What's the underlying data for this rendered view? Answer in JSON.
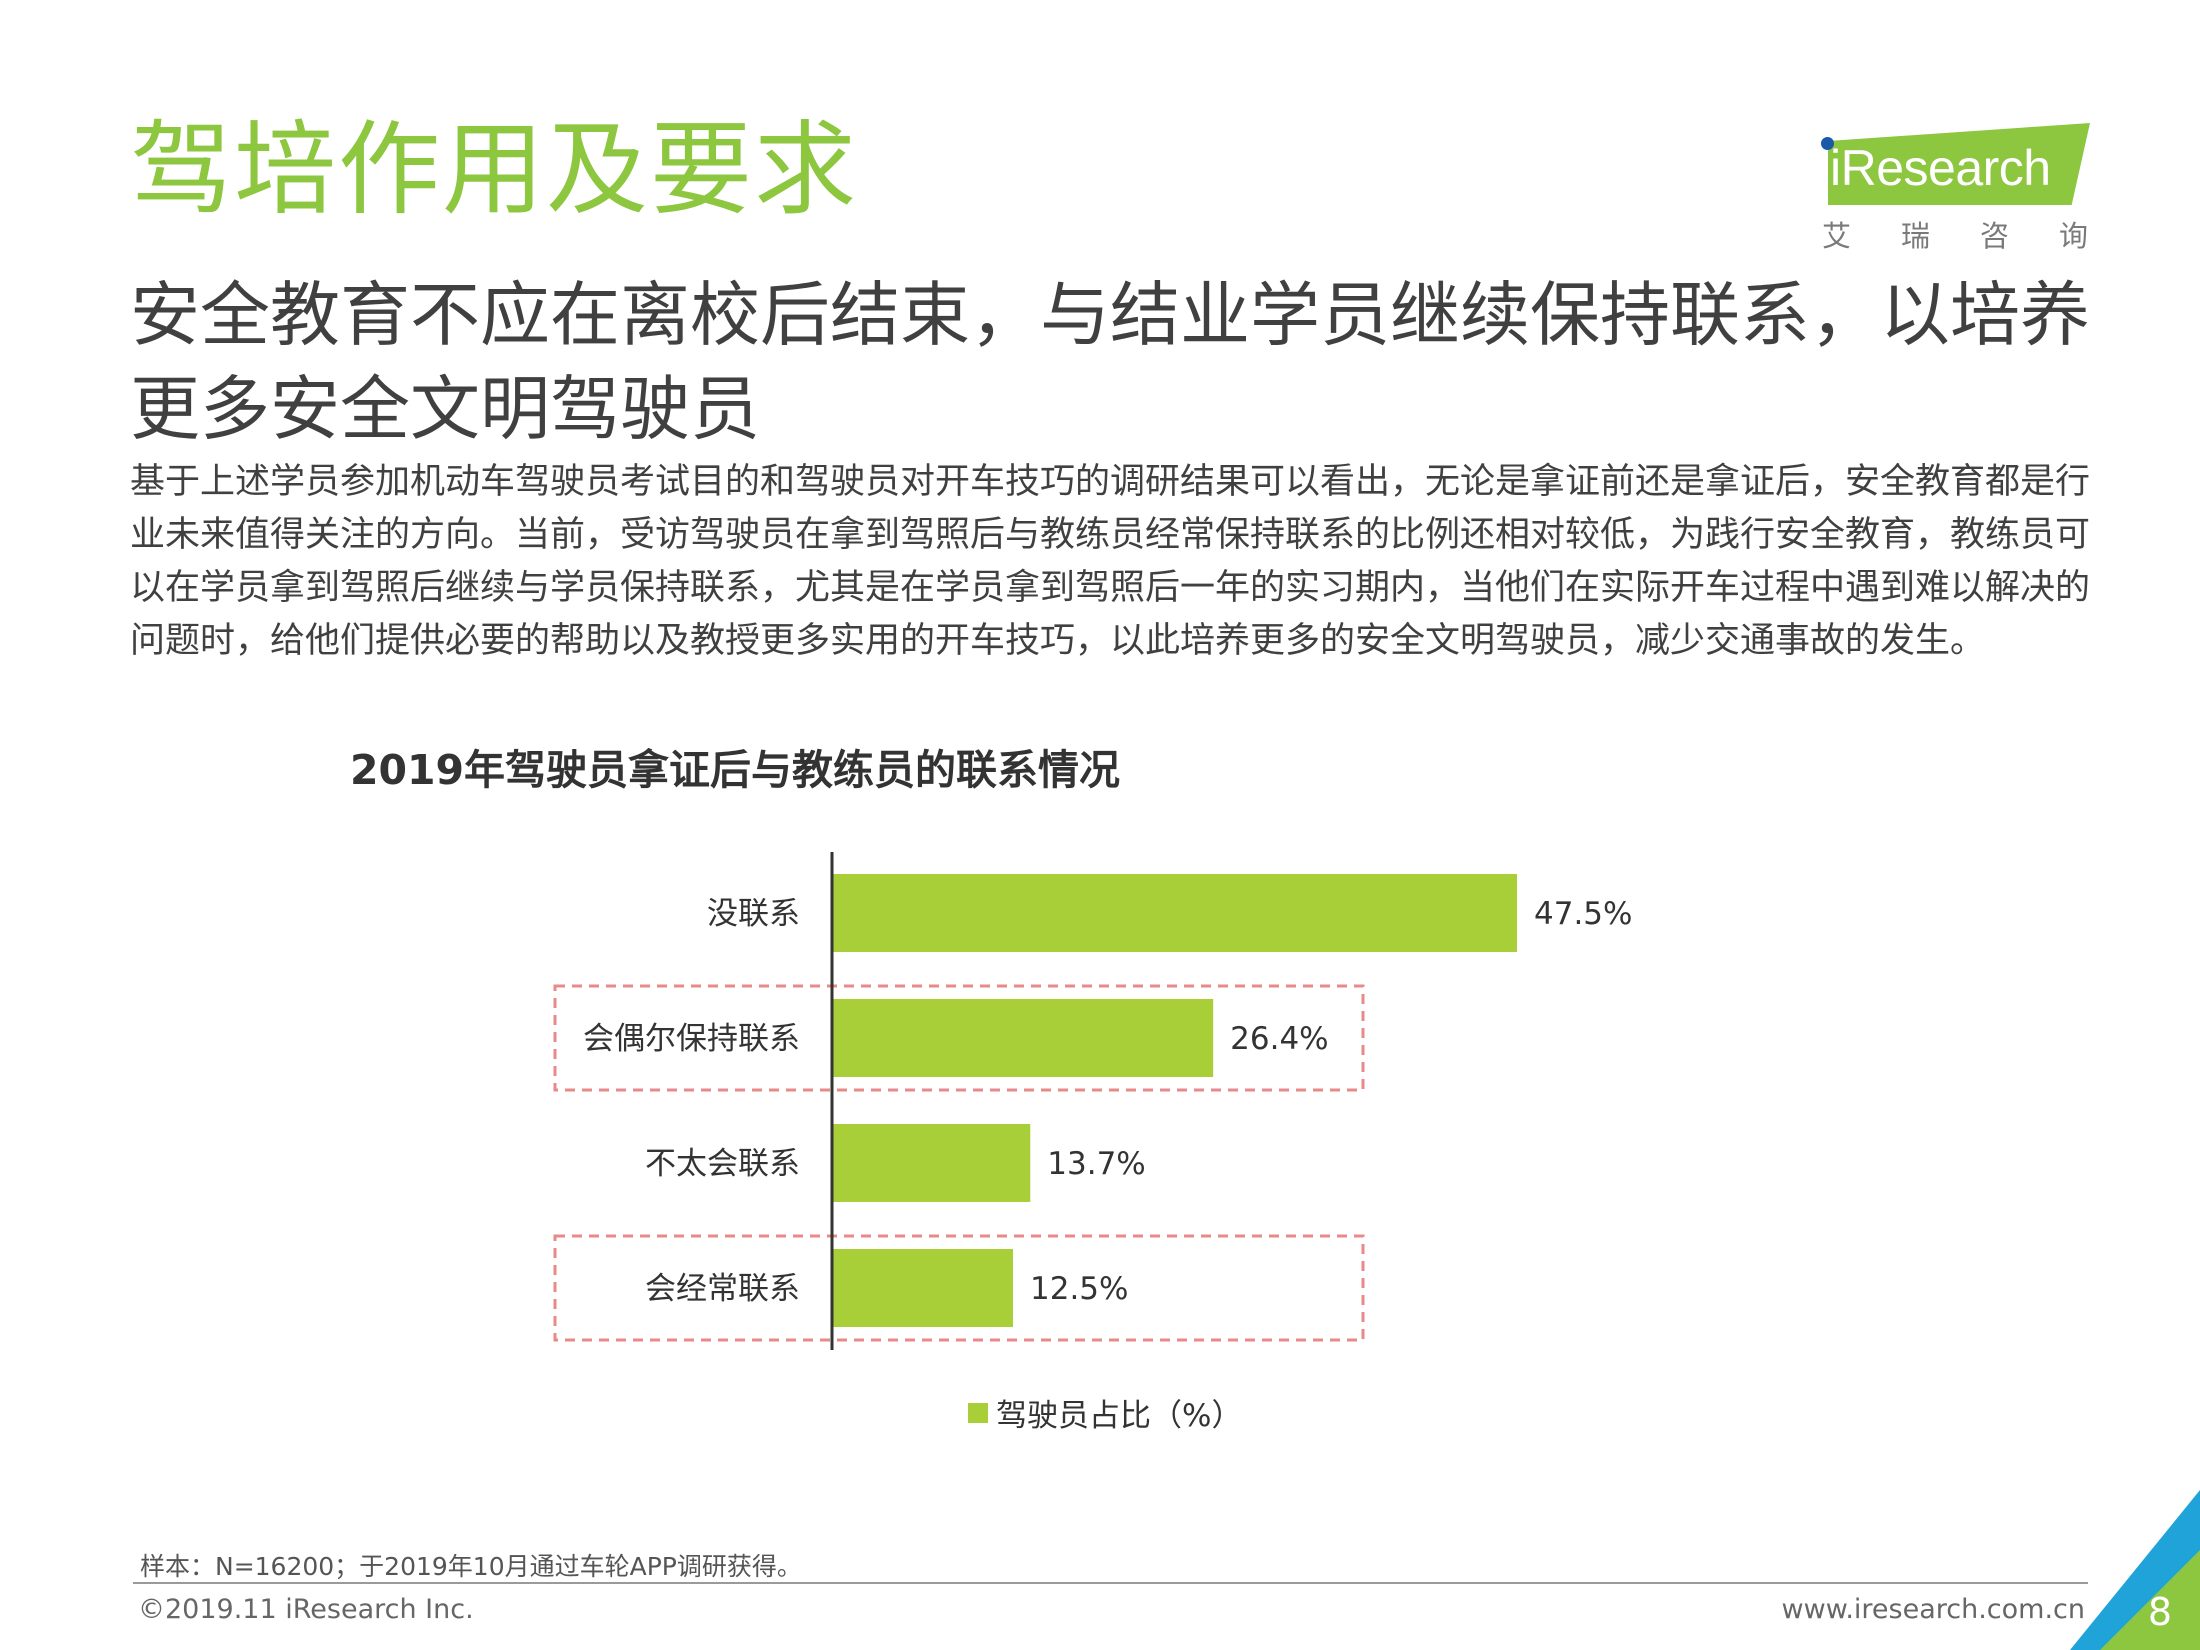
{
  "header": {
    "title": "驾培作用及要求",
    "subtitle": "安全教育不应在离校后结束，与结业学员继续保持联系，以培养更多安全文明驾驶员"
  },
  "logo": {
    "text": "iResearch",
    "chars": [
      "艾",
      "瑞",
      "咨",
      "询"
    ]
  },
  "intro": "基于上述学员参加机动车驾驶员考试目的和驾驶员对开车技巧的调研结果可以看出，无论是拿证前还是拿证后，安全教育都是行业未来值得关注的方向。当前，受访驾驶员在拿到驾照后与教练员经常保持联系的比例还相对较低，为践行安全教育，教练员可以在学员拿到驾照后继续与学员保持联系，尤其是在学员拿到驾照后一年的实习期内，当他们在实际开车过程中遇到难以解决的问题时，给他们提供必要的帮助以及教授更多实用的开车技巧，以此培养更多的安全文明驾驶员，减少交通事故的发生。",
  "chart_data": {
    "type": "bar",
    "orientation": "horizontal",
    "title": "2019年驾驶员拿证后与教练员的联系情况",
    "categories": [
      "没联系",
      "会偶尔保持联系",
      "不太会联系",
      "会经常联系"
    ],
    "values": [
      47.5,
      26.4,
      13.7,
      12.5
    ],
    "value_labels": [
      "47.5%",
      "26.4%",
      "13.7%",
      "12.5%"
    ],
    "highlighted": [
      false,
      true,
      false,
      true
    ],
    "series": [
      {
        "name": "驾驶员占比（%）",
        "values": [
          47.5,
          26.4,
          13.7,
          12.5
        ]
      }
    ],
    "legend": "驾驶员占比（%）",
    "xlim": [
      0,
      60
    ],
    "bar_color": "#a9cf38",
    "highlight_color": "#e88a8a"
  },
  "footer": {
    "note": "样本：N=16200；于2019年10月通过车轮APP调研获得。",
    "copyright": "©2019.11 iResearch Inc.",
    "website": "www.iresearch.com.cn",
    "page": "8"
  },
  "colors": {
    "accent": "#8dc63f",
    "corner_blue": "#1fa3d8"
  }
}
